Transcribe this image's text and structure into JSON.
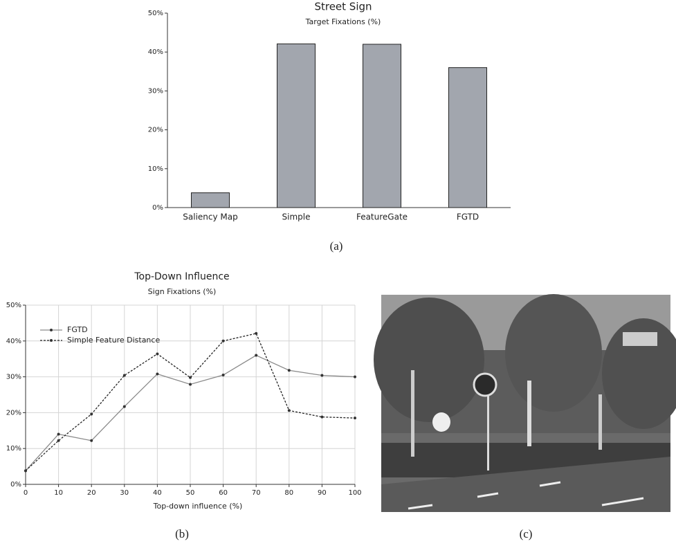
{
  "chart_data": [
    {
      "type": "bar",
      "title": "Street Sign",
      "subtitle": "Target Fixations (%)",
      "categories": [
        "Saliency Map",
        "Simple",
        "FeatureGate",
        "FGTD"
      ],
      "values": [
        3.8,
        42.1,
        42.0,
        36.0
      ],
      "color": "#a2a6ae",
      "ylim": [
        0,
        50
      ],
      "yticks": [
        {
          "value": 0,
          "label": "0%"
        },
        {
          "value": 10,
          "label": "10%"
        },
        {
          "value": 20,
          "label": "20%"
        },
        {
          "value": 30,
          "label": "30%"
        },
        {
          "value": 40,
          "label": "40%"
        },
        {
          "value": 50,
          "label": "50%"
        }
      ],
      "grid": false
    },
    {
      "type": "line",
      "title": "Top-Down Influence",
      "subtitle": "Sign Fixations (%)",
      "x_label": "Top-down influence (%)",
      "x": [
        0,
        10,
        20,
        30,
        40,
        50,
        60,
        70,
        80,
        90,
        100
      ],
      "series": [
        {
          "name": "FGTD",
          "color": "#8a8a8a",
          "dashed": false,
          "values": [
            3.8,
            14.0,
            12.2,
            21.7,
            30.8,
            27.9,
            30.5,
            36.0,
            31.8,
            30.4,
            30.0
          ]
        },
        {
          "name": "Simple Feature Distance",
          "color": "#222222",
          "dashed": true,
          "values": [
            3.8,
            12.2,
            19.6,
            30.4,
            36.4,
            29.8,
            40.0,
            42.1,
            20.6,
            18.8,
            18.5
          ]
        }
      ],
      "xlim": [
        0,
        100
      ],
      "xticks": [
        0,
        10,
        20,
        30,
        40,
        50,
        60,
        70,
        80,
        90,
        100
      ],
      "ylim": [
        0,
        50
      ],
      "yticks": [
        {
          "value": 0,
          "label": "0%"
        },
        {
          "value": 10,
          "label": "10%"
        },
        {
          "value": 20,
          "label": "20%"
        },
        {
          "value": 30,
          "label": "30%"
        },
        {
          "value": 40,
          "label": "40%"
        },
        {
          "value": 50,
          "label": "50%"
        }
      ],
      "grid": true,
      "legend": "upper left"
    }
  ],
  "captions": [
    "(a)",
    "(b)",
    "(c)"
  ]
}
